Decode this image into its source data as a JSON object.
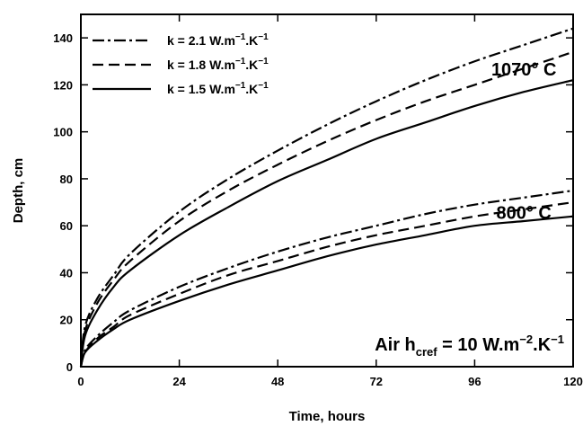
{
  "chart_data": {
    "type": "line",
    "xlabel": "Time, hours",
    "ylabel": "Depth, cm",
    "xlim": [
      0,
      120
    ],
    "ylim": [
      0,
      150
    ],
    "xticks": [
      0,
      24,
      48,
      72,
      96,
      120
    ],
    "yticks": [
      0,
      20,
      40,
      60,
      80,
      100,
      120,
      140
    ],
    "grid": false,
    "legend_position": "top-left",
    "legend": [
      {
        "k": "2.1",
        "style": "dash-dot"
      },
      {
        "k": "1.8",
        "style": "dashed"
      },
      {
        "k": "1.5",
        "style": "solid"
      }
    ],
    "annotations": [
      {
        "text": "1070° C",
        "at": [
          108,
          124
        ]
      },
      {
        "text": "800° C",
        "at": [
          108,
          63
        ]
      }
    ],
    "note": {
      "prefix": "Air  h",
      "sub": "cref",
      "mid": " = 10 W.m",
      "sup1": "−2",
      "mid2": ".K",
      "sup2": "−1"
    },
    "x": [
      0,
      1,
      4,
      8,
      12,
      24,
      36,
      48,
      60,
      72,
      84,
      96,
      108,
      120
    ],
    "series": [
      {
        "group": "1070",
        "k": "2.1",
        "style": "dash-dot",
        "values": [
          0,
          17,
          29,
          39,
          48,
          66,
          80,
          92,
          103,
          113,
          122,
          130,
          137,
          144
        ]
      },
      {
        "group": "1070",
        "k": "1.8",
        "style": "dashed",
        "values": [
          0,
          15,
          27,
          37,
          45,
          62,
          75,
          86,
          96,
          105,
          113,
          120,
          127,
          134
        ]
      },
      {
        "group": "1070",
        "k": "1.5",
        "style": "solid",
        "values": [
          0,
          13,
          24,
          34,
          41,
          56,
          68,
          79,
          88,
          97,
          104,
          111,
          117,
          122
        ]
      },
      {
        "group": "800",
        "k": "2.1",
        "style": "dash-dot",
        "values": [
          0,
          7,
          13,
          19,
          24,
          34,
          42,
          49,
          55,
          60,
          65,
          69,
          72,
          75
        ]
      },
      {
        "group": "800",
        "k": "1.8",
        "style": "dashed",
        "values": [
          0,
          6,
          12,
          17,
          22,
          31,
          39,
          45,
          51,
          56,
          60,
          64,
          67,
          70
        ]
      },
      {
        "group": "800",
        "k": "1.5",
        "style": "solid",
        "values": [
          0,
          6,
          11,
          16,
          20,
          28,
          35,
          41,
          47,
          52,
          56,
          60,
          62,
          64
        ]
      }
    ]
  }
}
